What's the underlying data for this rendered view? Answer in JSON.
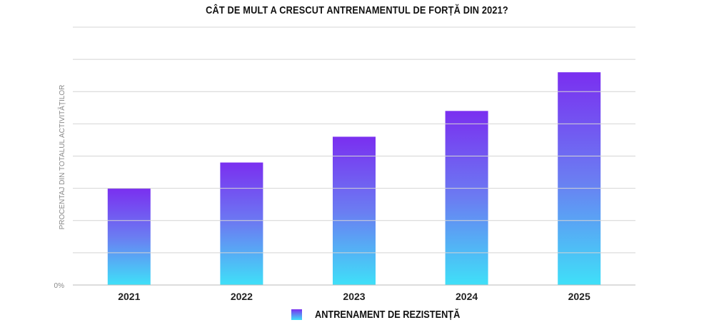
{
  "chart_data": {
    "type": "bar",
    "title": "CÂT DE MULT A CRESCUT ANTRENAMENTUL DE FORȚĂ DIN 2021?",
    "xlabel": "",
    "ylabel": "PROCENTAJ DIN TOTALUL ACTIVITĂȚILOR",
    "y_tick_label": "0%",
    "categories": [
      "2021",
      "2022",
      "2023",
      "2024",
      "2025"
    ],
    "series": [
      {
        "name": "ANTRENAMENT DE REZISTENȚĂ",
        "values": [
          3.0,
          3.8,
          4.6,
          5.4,
          6.6
        ]
      }
    ],
    "ylim": [
      0,
      8
    ],
    "grid": true,
    "legend": "bottom-center",
    "colors": {
      "top": "#7a2ff0",
      "bottom": "#3fe0f8"
    }
  }
}
